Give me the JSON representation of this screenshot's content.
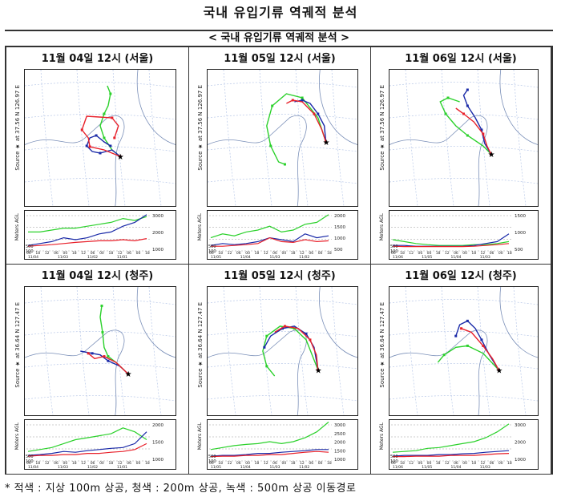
{
  "document": {
    "title": "국내 유입기류 역궤적 분석",
    "subtitle": "< 국내 유입기류 역궤적 분석 >",
    "footnote": "* 적색 : 지상 100m 상공, 청색 : 200m 상공, 녹색 : 500m 상공 이동경로"
  },
  "colors": {
    "red": "#e8202a",
    "blue": "#1a2aa8",
    "green": "#2bd12b",
    "map_line": "#6a8fd0"
  },
  "panels": [
    {
      "title": "11월 04일 12시 (서울)",
      "source": "Source ★ at 37.56 N 126.97 E",
      "alt_label": "Meters AGL",
      "alt_ticks": [
        "3000",
        "2000",
        "1000"
      ],
      "alt_low": [
        "500",
        "100"
      ],
      "time_ticks": [
        "00",
        "18",
        "12",
        "06",
        "00",
        "18",
        "12",
        "06",
        "00",
        "18",
        "12",
        "06",
        "00",
        "18"
      ],
      "dates": [
        "11/04",
        "11/03",
        "11/02",
        "11/01"
      ]
    },
    {
      "title": "11월 05일 12시 (서울)",
      "source": "Source ★ at 37.56 N 126.97 E",
      "alt_label": "Meters AGL",
      "alt_ticks": [
        "2000",
        "1500",
        "1000",
        "500"
      ],
      "alt_low": [
        "500",
        "100"
      ],
      "time_ticks": [
        "00",
        "18",
        "12",
        "06",
        "00",
        "18",
        "12",
        "06",
        "00",
        "18",
        "12",
        "06",
        "00",
        "18"
      ],
      "dates": [
        "11/05",
        "11/04",
        "11/03",
        "11/02"
      ]
    },
    {
      "title": "11월 06일 12시 (서울)",
      "source": "Source ★ at 37.56 N 126.97 E",
      "alt_label": "Meters AGL",
      "alt_ticks": [
        "1500",
        "1000",
        "500"
      ],
      "alt_low": [
        "500",
        "100"
      ],
      "time_ticks": [
        "00",
        "18",
        "12",
        "06",
        "00",
        "18",
        "12",
        "06",
        "00",
        "18",
        "12",
        "06",
        "00",
        "18"
      ],
      "dates": [
        "11/06",
        "11/05",
        "11/04",
        "11/03"
      ]
    },
    {
      "title": "11월 04일 12시 (청주)",
      "source": "Source ★ at 36.64 N 127.47 E",
      "alt_label": "Meters AGL",
      "alt_ticks": [
        "2000",
        "1500",
        "1000"
      ],
      "alt_low": [
        "500",
        "100"
      ],
      "time_ticks": [
        "00",
        "18",
        "12",
        "06",
        "00",
        "18",
        "12",
        "06",
        "00",
        "18",
        "12",
        "06",
        "00",
        "18"
      ],
      "dates": [
        "11/04",
        "11/03",
        "11/02",
        "11/01"
      ]
    },
    {
      "title": "11월 05일 12시 (청주)",
      "source": "Source ★ at 36.64 N 127.47 E",
      "alt_label": "Meters AGL",
      "alt_ticks": [
        "3000",
        "2500",
        "2000",
        "1500",
        "1000"
      ],
      "alt_low": [
        "500",
        "100"
      ],
      "time_ticks": [
        "00",
        "18",
        "12",
        "06",
        "00",
        "18",
        "12",
        "06",
        "00",
        "18",
        "12",
        "06",
        "00",
        "18"
      ],
      "dates": [
        "11/05",
        "11/04",
        "11/03",
        "11/02"
      ]
    },
    {
      "title": "11월 06일 12시 (청주)",
      "source": "Source ★ at 36.64 N 127.47 E",
      "alt_label": "Meters AGL",
      "alt_ticks": [
        "3000",
        "2000",
        "1000"
      ],
      "alt_low": [
        "500",
        "100"
      ],
      "time_ticks": [
        "00",
        "18",
        "12",
        "06",
        "00",
        "18",
        "12",
        "06",
        "00",
        "18",
        "12",
        "06",
        "00",
        "18"
      ],
      "dates": [
        "11/06",
        "11/05",
        "11/04",
        "11/03"
      ]
    }
  ]
}
